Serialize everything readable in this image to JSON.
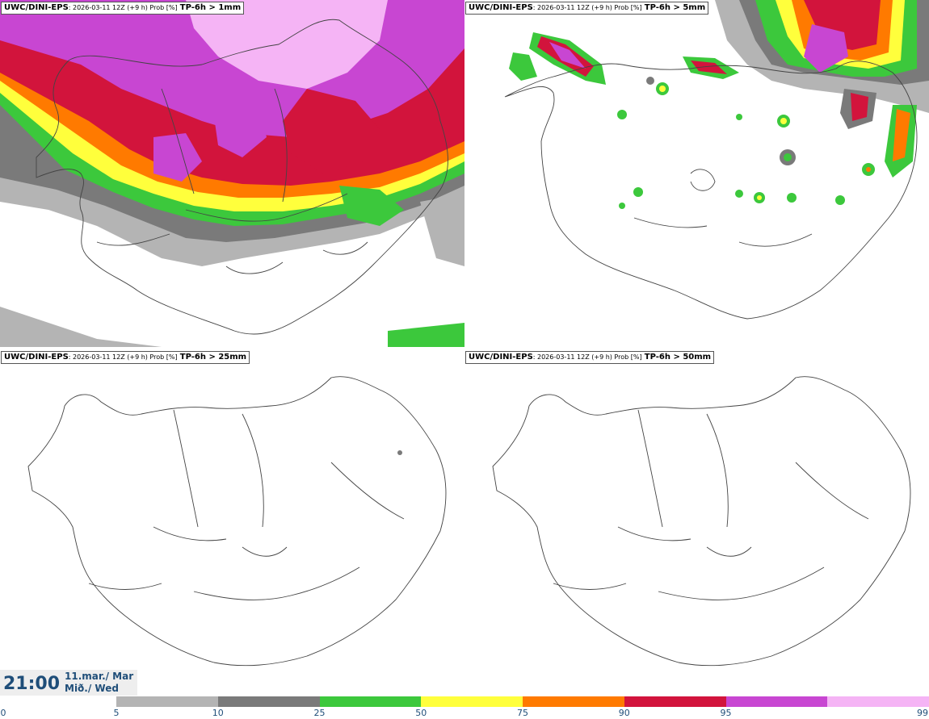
{
  "panels": [
    {
      "model": "UWC/DINI-EPS",
      "subtitle": ": 2026-03-11 12Z (+9 h) Prob [%]",
      "threshold": "TP-6h > 1mm"
    },
    {
      "model": "UWC/DINI-EPS",
      "subtitle": ": 2026-03-11 12Z (+9 h) Prob [%]",
      "threshold": "TP-6h > 5mm"
    },
    {
      "model": "UWC/DINI-EPS",
      "subtitle": ": 2026-03-11 12Z (+9 h) Prob [%]",
      "threshold": "TP-6h > 25mm"
    },
    {
      "model": "UWC/DINI-EPS",
      "subtitle": ": 2026-03-11 12Z (+9 h) Prob [%]",
      "threshold": "TP-6h > 50mm"
    }
  ],
  "valid_time": {
    "time": "21:00",
    "date_line1": "11.mar./ Mar",
    "date_line2": "Mið./ Wed"
  },
  "colorbar": {
    "ticks": [
      "0",
      "5",
      "10",
      "25",
      "50",
      "75",
      "90",
      "95",
      "99"
    ],
    "colors": [
      "#b4b4b4",
      "#7a7a7a",
      "#3cc83c",
      "#ffff3c",
      "#ff7a00",
      "#d2143c",
      "#c846d2",
      "#f5b4f5"
    ]
  }
}
